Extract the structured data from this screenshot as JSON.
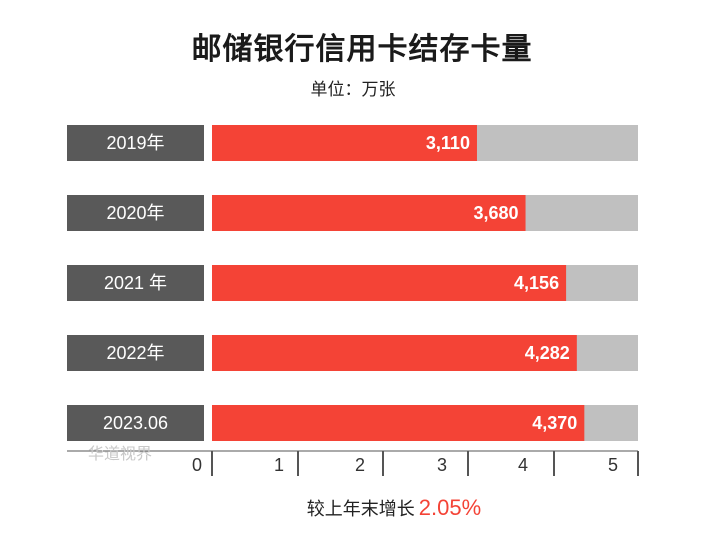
{
  "chart_data": {
    "type": "bar",
    "orientation": "horizontal",
    "title": "邮储银行信用卡结存卡量",
    "subtitle": "单位：万张",
    "categories": [
      "2019年",
      "2020年",
      "2021 年",
      "2022年",
      "2023.06"
    ],
    "values": [
      3110,
      3680,
      4156,
      4282,
      4370
    ],
    "value_labels": [
      "3,110",
      "3,680",
      "4,156",
      "4,282",
      "4,370"
    ],
    "x_ticks": [
      "0",
      "1",
      "2",
      "3",
      "4",
      "5"
    ],
    "xlim": [
      0,
      5000
    ],
    "grid": false,
    "colors": {
      "bar": "#f44336",
      "track": "#c0c0c0",
      "category_box": "#595959",
      "category_text": "#ffffff",
      "value_text": "#ffffff",
      "axis": "#555555"
    }
  },
  "footer": {
    "label": "较上年末增长",
    "value": "2.05%"
  },
  "watermark": "华道视界"
}
